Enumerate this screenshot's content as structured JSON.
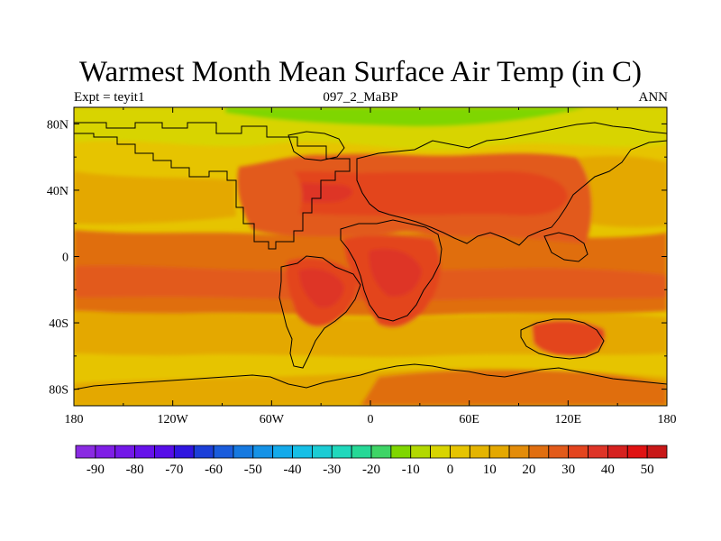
{
  "title": "Warmest Month Mean Surface Air Temp (in C)",
  "left_subtitle": "Expt = teyit1",
  "center_subtitle": "097_2_MaBP",
  "right_subtitle": "ANN",
  "map": {
    "lon_range": [
      -180,
      180
    ],
    "lat_range": [
      -90,
      90
    ],
    "x_ticks": [
      {
        "value": -180,
        "label": "180"
      },
      {
        "value": -120,
        "label": "120W"
      },
      {
        "value": -60,
        "label": "60W"
      },
      {
        "value": 0,
        "label": "0"
      },
      {
        "value": 60,
        "label": "60E"
      },
      {
        "value": 120,
        "label": "120E"
      },
      {
        "value": 180,
        "label": "180"
      }
    ],
    "y_ticks": [
      {
        "value": 80,
        "label": "80N"
      },
      {
        "value": 40,
        "label": "40N"
      },
      {
        "value": 0,
        "label": "0"
      },
      {
        "value": -40,
        "label": "40S"
      },
      {
        "value": -80,
        "label": "80S"
      }
    ],
    "colors": {
      "ocean_band_25": "#e4a800",
      "band_20": "#e6c400",
      "band_10": "#d8d400",
      "band_0": "#7fd600",
      "land_35": "#e25a1a",
      "land_40": "#e3441e",
      "land_45": "#de3427",
      "tropics_30": "#e06e10",
      "coast_line": "#000000"
    }
  },
  "colorbar": {
    "min": -95,
    "max": 55,
    "step": 5,
    "colors": [
      "#8a2be2",
      "#7f1ee6",
      "#7318e8",
      "#6612ea",
      "#560ee8",
      "#3016e0",
      "#1c3fd8",
      "#1a5cdc",
      "#1679e0",
      "#1592e6",
      "#14aaea",
      "#16bfe6",
      "#1cccd4",
      "#20d8bc",
      "#26d896",
      "#3ed466",
      "#7fd600",
      "#b2d800",
      "#d8d400",
      "#e6c400",
      "#e4b400",
      "#e4a800",
      "#e38c0a",
      "#e06e10",
      "#e25a1a",
      "#e3441e",
      "#de3427",
      "#d6211f",
      "#e01212",
      "#c81818"
    ],
    "labels": [
      {
        "value": -90,
        "label": "-90"
      },
      {
        "value": -80,
        "label": "-80"
      },
      {
        "value": -70,
        "label": "-70"
      },
      {
        "value": -60,
        "label": "-60"
      },
      {
        "value": -50,
        "label": "-50"
      },
      {
        "value": -40,
        "label": "-40"
      },
      {
        "value": -30,
        "label": "-30"
      },
      {
        "value": -20,
        "label": "-20"
      },
      {
        "value": -10,
        "label": "-10"
      },
      {
        "value": 0,
        "label": "0"
      },
      {
        "value": 10,
        "label": "10"
      },
      {
        "value": 20,
        "label": "20"
      },
      {
        "value": 30,
        "label": "30"
      },
      {
        "value": 40,
        "label": "40"
      },
      {
        "value": 50,
        "label": "50"
      }
    ]
  }
}
